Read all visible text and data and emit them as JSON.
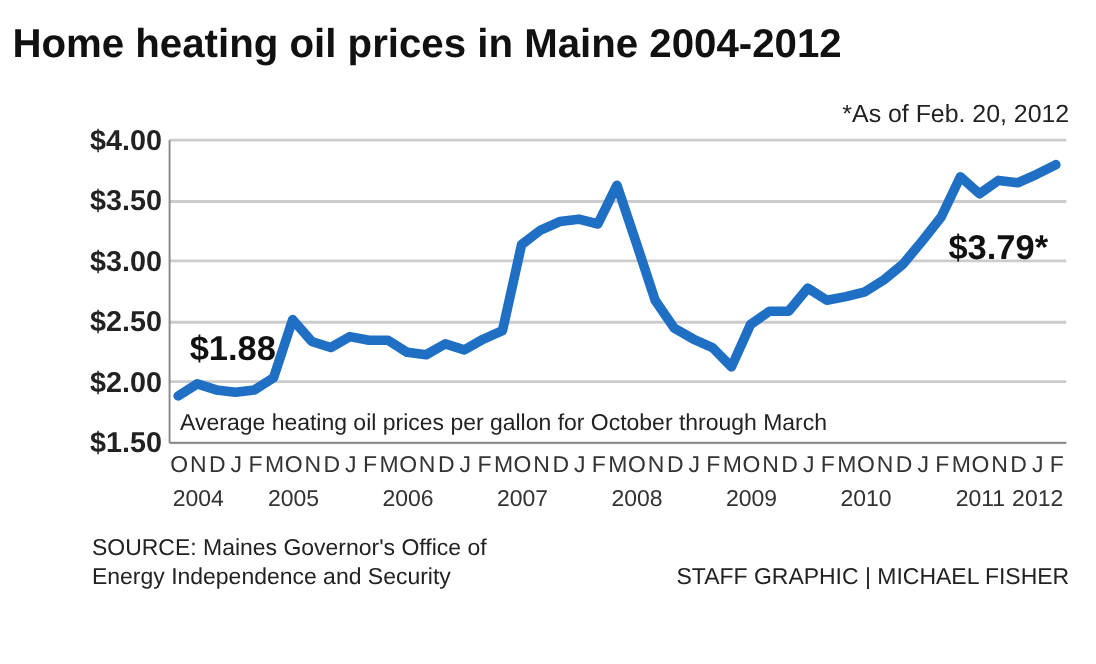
{
  "chart_data": {
    "type": "line",
    "title": "Home heating oil prices in Maine 2004-2012",
    "categories": [
      "O",
      "N\n2004",
      "D",
      "J",
      "F",
      "M",
      "O\n2005",
      "N",
      "D",
      "J",
      "F",
      "M",
      "O\n2006",
      "N",
      "D",
      "J",
      "F",
      "M",
      "O\n2007",
      "N",
      "D",
      "J",
      "F",
      "M",
      "O\n2008",
      "N",
      "D",
      "J",
      "F",
      "M",
      "O\n2009",
      "N",
      "D",
      "J",
      "F",
      "M",
      "O\n2010",
      "N",
      "D",
      "J",
      "F",
      "M",
      "O\n2011",
      "N",
      "D",
      "J\n2012",
      "F"
    ],
    "series": [
      {
        "color": "#1f6fc5",
        "values": [
          1.88,
          1.98,
          1.93,
          1.91,
          1.93,
          2.03,
          2.51,
          2.33,
          2.28,
          2.37,
          2.34,
          2.34,
          2.24,
          2.22,
          2.31,
          2.26,
          2.35,
          2.42,
          3.13,
          3.25,
          3.32,
          3.34,
          3.3,
          3.62,
          3.15,
          2.67,
          2.44,
          2.35,
          2.28,
          2.12,
          2.47,
          2.58,
          2.58,
          2.77,
          2.67,
          2.7,
          2.74,
          2.84,
          2.97,
          3.16,
          3.36,
          3.69,
          3.55,
          3.66,
          3.64,
          3.71,
          3.79
        ]
      }
    ],
    "ylim": [
      1.5,
      4.0
    ],
    "yticks": [
      {
        "value": 1.5,
        "label": "$1.50"
      },
      {
        "value": 2.0,
        "label": "$2.00"
      },
      {
        "value": 2.5,
        "label": "$2.50"
      },
      {
        "value": 3.0,
        "label": "$3.00"
      },
      {
        "value": 3.5,
        "label": "$3.50"
      },
      {
        "value": 4.0,
        "label": "$4.00"
      }
    ],
    "grid": "y",
    "marker": "none",
    "line_style": "solid",
    "annotations": [
      "*As of Feb. 20, 2012",
      "Average heating oil prices per gallon for October through March",
      "SOURCE: Maines Governor's Office of\nEnergy Independence and Security",
      "STAFF GRAPHIC | MICHAEL FISHER",
      {
        "text": "$1.88",
        "x": "O",
        "y": 1.88
      },
      {
        "text": "$3.79*",
        "y": 3.79
      }
    ]
  }
}
